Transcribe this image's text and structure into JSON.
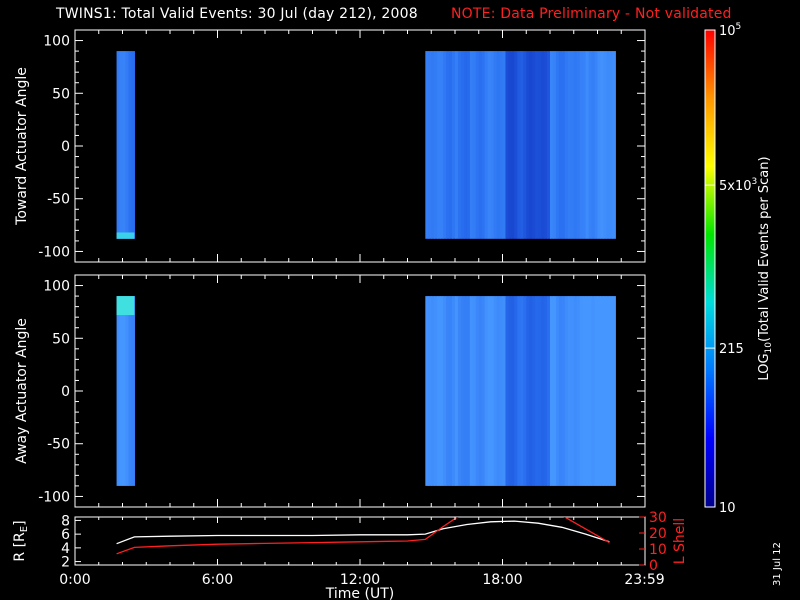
{
  "header": {
    "title": "TWINS1: Total Valid Events: 30 Jul (day 212), 2008",
    "note": "NOTE: Data Preliminary - Not validated"
  },
  "stamp": "31 Jul 12",
  "colors": {
    "background": "#000000",
    "note": "#ff2020",
    "r_line": "#ffffff",
    "lshell_line": "#ff2020",
    "colorbar": [
      "#00008c",
      "#0000ff",
      "#0078ff",
      "#00dcdc",
      "#00e600",
      "#ffff00",
      "#ff9600",
      "#ff0000"
    ]
  },
  "chart_data": [
    {
      "type": "heatmap",
      "panel": "Toward Actuator Angle",
      "ylabel": "Toward Actuator Angle",
      "xlim": [
        0,
        24
      ],
      "ylim": [
        -110,
        110
      ],
      "y_ticks": [
        100,
        50,
        0,
        -50,
        -100
      ],
      "data_intervals_hours": [
        [
          1.75,
          2.5
        ],
        [
          14.75,
          22.75
        ]
      ],
      "y_range_deg": [
        -88,
        90
      ],
      "typical_color": "blue to light blue (approx. 100-300 events per scan)"
    },
    {
      "type": "heatmap",
      "panel": "Away Actuator Angle",
      "ylabel": "Away Actuator Angle",
      "xlim": [
        0,
        24
      ],
      "ylim": [
        -110,
        110
      ],
      "y_ticks": [
        100,
        50,
        0,
        -50,
        -100
      ],
      "data_intervals_hours": [
        [
          1.75,
          2.5
        ],
        [
          14.75,
          22.75
        ]
      ],
      "y_range_deg": [
        -90,
        90
      ],
      "typical_color": "light blue to cyan (approx. 150-400 events per scan)"
    },
    {
      "type": "line",
      "panel": "Ephemeris",
      "xlabel": "Time (UT)",
      "x_ticks": [
        "0:00",
        "6:00",
        "12:00",
        "18:00",
        "23:59"
      ],
      "y_left_label": "R [RE]",
      "y_left_ticks": [
        2,
        4,
        6,
        8
      ],
      "y_left_lim": [
        1.5,
        8.5
      ],
      "y_right_label": "L Shell",
      "y_right_ticks": [
        0,
        10,
        20,
        30
      ],
      "y_right_lim": [
        0,
        30
      ],
      "series": [
        {
          "name": "R [RE]",
          "axis": "left",
          "x": [
            1.75,
            2.5,
            4,
            6,
            8,
            10,
            12,
            14,
            14.75,
            15.5,
            16.5,
            17.5,
            18.5,
            19.5,
            20.5,
            21.5,
            22.5
          ],
          "y": [
            4.6,
            5.6,
            5.7,
            5.8,
            5.8,
            5.8,
            5.9,
            5.9,
            6.0,
            6.8,
            7.4,
            7.8,
            7.9,
            7.6,
            7.0,
            6.0,
            4.9
          ]
        },
        {
          "name": "L Shell",
          "axis": "right",
          "x": [
            1.75,
            2.5,
            4,
            6,
            8,
            10,
            12,
            14,
            14.75,
            15.5,
            16.2,
            20.5,
            22.5
          ],
          "y": [
            7,
            11,
            12,
            13,
            13.5,
            14,
            14.5,
            15,
            16,
            24,
            31,
            31,
            14
          ]
        }
      ]
    }
  ],
  "colorbar": {
    "label": "LOG10(Total Valid Events per Scan)",
    "ticks": [
      {
        "base": "10",
        "exp": "",
        "value": 10
      },
      {
        "base": "215",
        "exp": "",
        "value": 215
      },
      {
        "base": "5x10",
        "exp": "3",
        "value": 5000
      },
      {
        "base": "10",
        "exp": "5",
        "value": 100000
      }
    ],
    "min": 10,
    "max": 100000
  }
}
